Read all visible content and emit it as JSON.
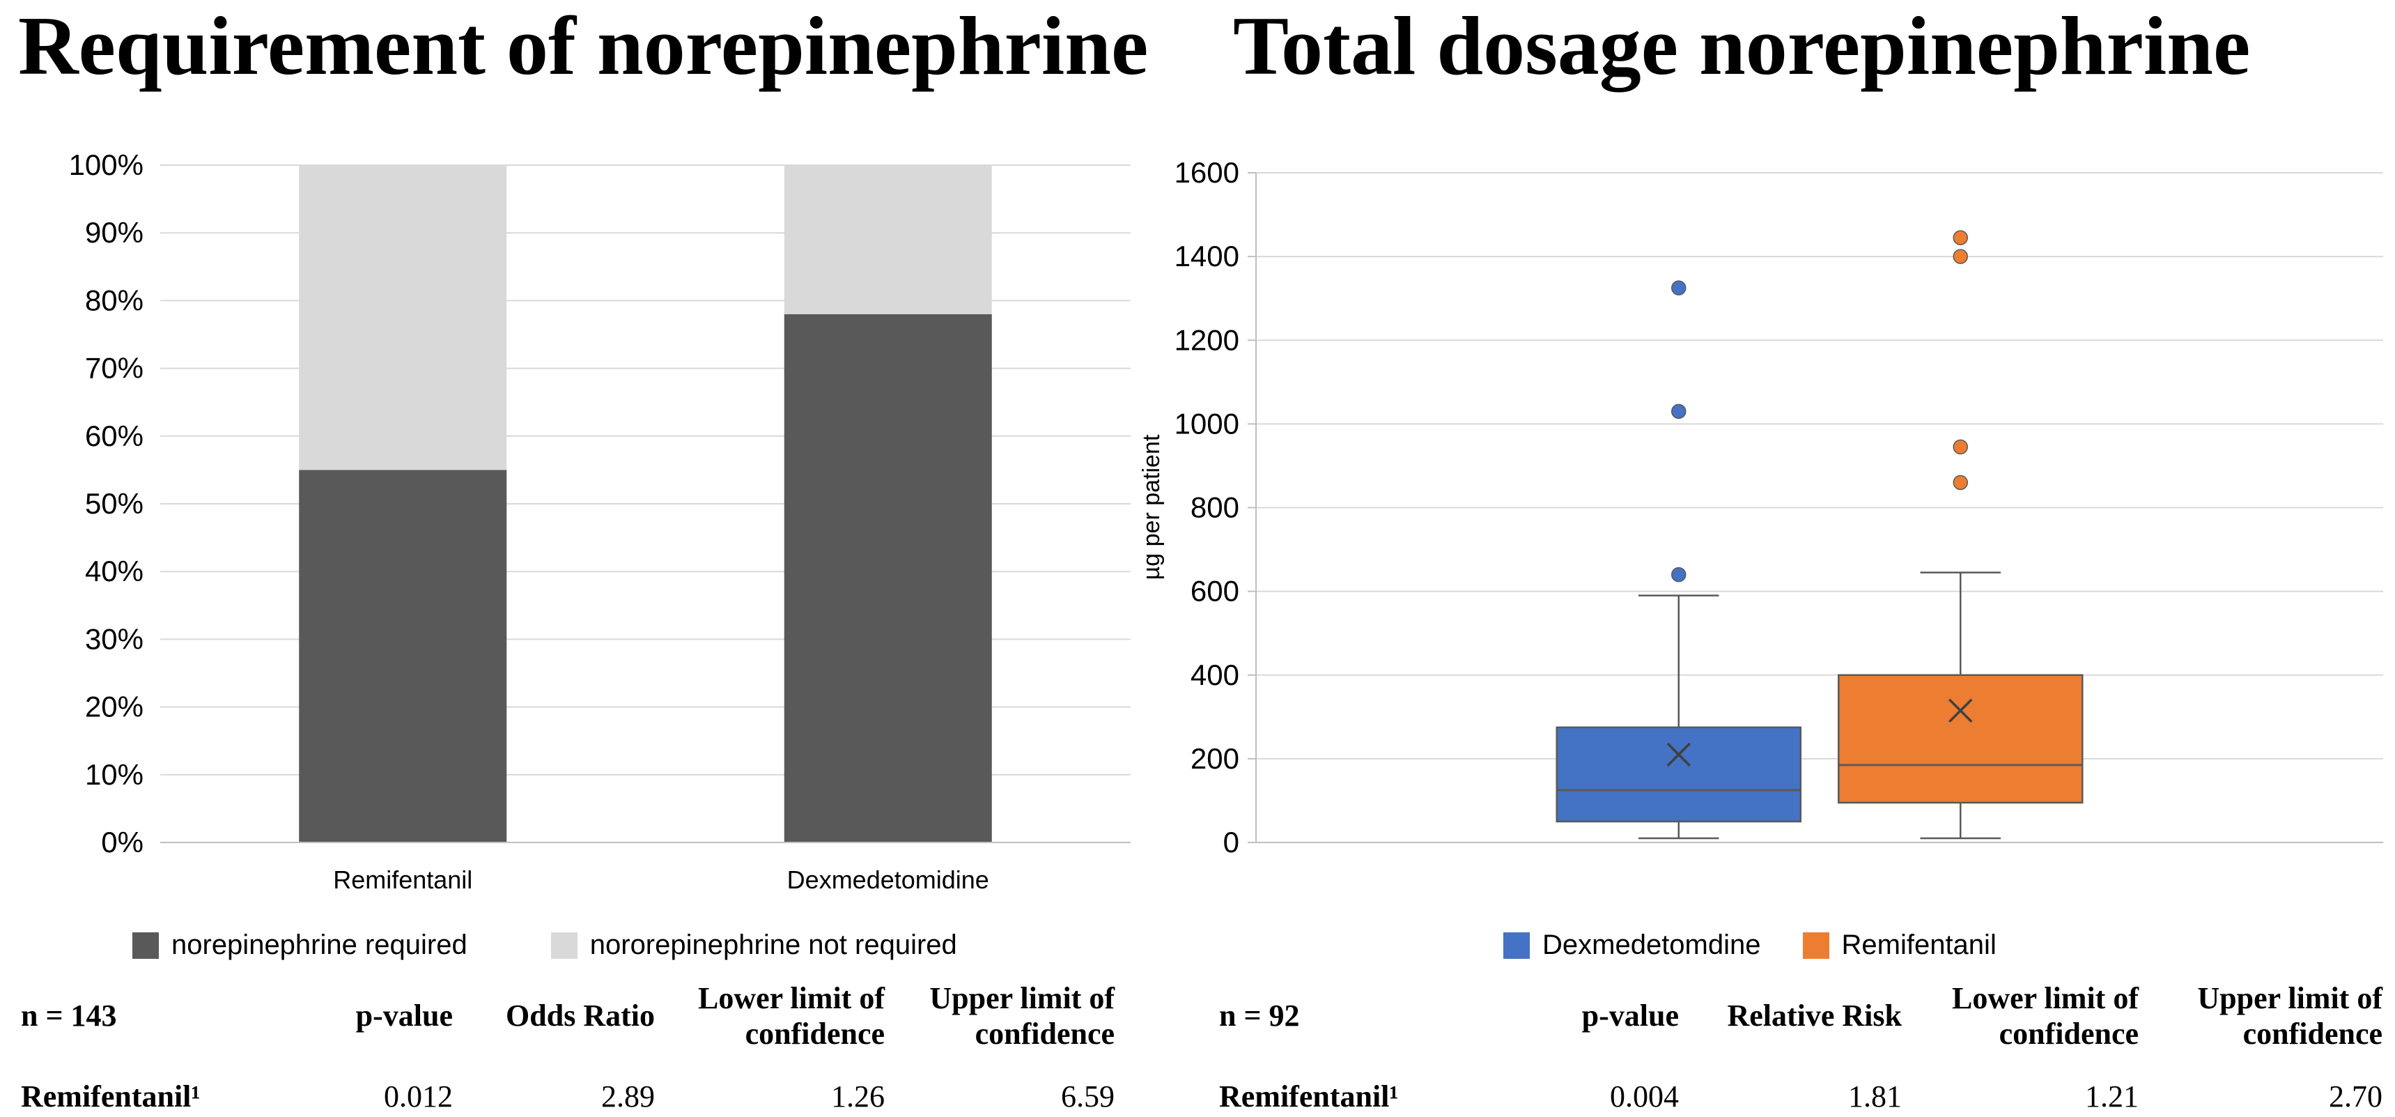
{
  "chart_data": [
    {
      "type": "bar",
      "stacked": true,
      "title": "Requirement of norepinephrine",
      "categories": [
        "Remifentanil",
        "Dexmedetomidine"
      ],
      "series": [
        {
          "name": "norepinephrine required",
          "color": "#595959",
          "values": [
            55,
            78
          ]
        },
        {
          "name": "nororepinephrine not required",
          "color": "#d9d9d9",
          "values": [
            45,
            22
          ]
        }
      ],
      "ylim": [
        0,
        100
      ],
      "ytick_step": 10,
      "ytick_suffix": "%",
      "grid": true,
      "legend_position": "bottom",
      "grid_color": "#d9d9d9",
      "axis_color": "#bfbfbf",
      "stats_table": {
        "n": "n = 143",
        "headers": [
          "p-value",
          "Odds Ratio",
          "Lower limit of confidence",
          "Upper limit of confidence"
        ],
        "rows": [
          {
            "label": "Remifentanil¹",
            "values": [
              "0.012",
              "2.89",
              "1.26",
              "6.59"
            ]
          }
        ]
      }
    },
    {
      "type": "boxplot",
      "title": "Total dosage norepinephrine",
      "ylabel": "µg per patient",
      "ylim": [
        0,
        1600
      ],
      "ytick_step": 200,
      "grid": true,
      "legend_position": "bottom",
      "grid_color": "#d9d9d9",
      "axis_color": "#bfbfbf",
      "series": [
        {
          "name": "Dexmedetomdine",
          "color": "#4472c4",
          "edge": "#595959",
          "whisker_low": 10,
          "q1": 50,
          "median": 125,
          "q3": 275,
          "whisker_high": 590,
          "mean": 210,
          "outliers": [
            640,
            1030,
            1325
          ]
        },
        {
          "name": "Remifentanil",
          "color": "#ed7d31",
          "edge": "#595959",
          "whisker_low": 10,
          "q1": 95,
          "median": 185,
          "q3": 400,
          "whisker_high": 645,
          "mean": 315,
          "outliers": [
            860,
            945,
            1400,
            1445
          ]
        }
      ],
      "stats_table": {
        "n": "n = 92",
        "headers": [
          "p-value",
          "Relative Risk",
          "Lower limit of confidence",
          "Upper limit of confidence"
        ],
        "rows": [
          {
            "label": "Remifentanil¹",
            "values": [
              "0.004",
              "1.81",
              "1.21",
              "2.70"
            ]
          }
        ]
      }
    }
  ]
}
